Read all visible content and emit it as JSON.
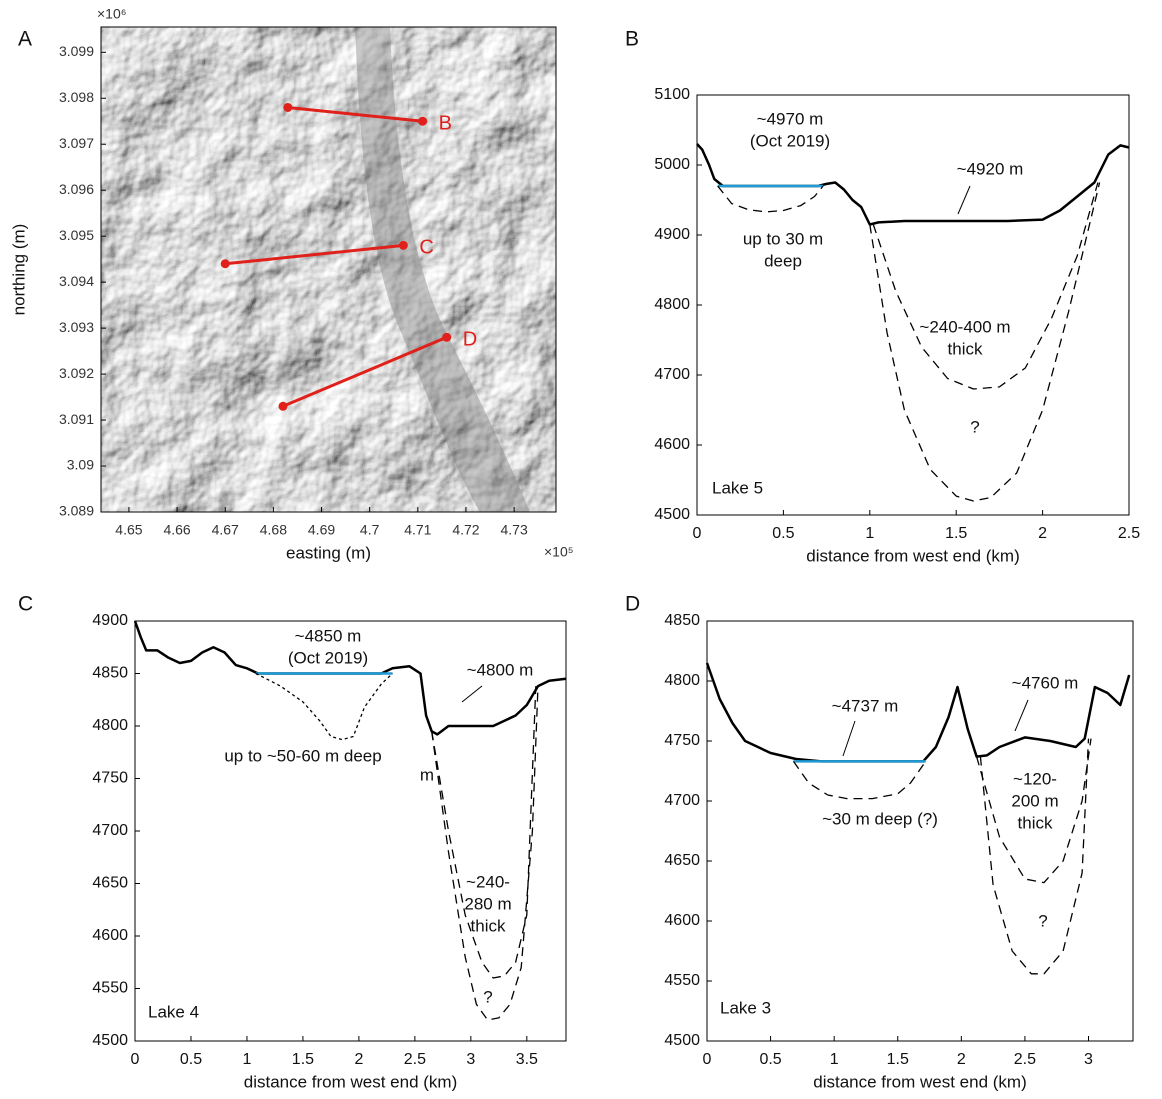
{
  "chart_data": [
    {
      "type": "map",
      "label": "A",
      "xlabel": "easting (m)",
      "ylabel": "northing (m)",
      "x_multiplier": "×10⁵",
      "y_multiplier": "×10⁶",
      "xlim": [
        4.6442,
        4.7387
      ],
      "ylim": [
        3.089,
        3.09955
      ],
      "xticks": [
        4.65,
        4.66,
        4.67,
        4.68,
        4.69,
        4.7,
        4.71,
        4.72,
        4.73
      ],
      "yticks": [
        3.089,
        3.09,
        3.091,
        3.092,
        3.093,
        3.094,
        3.095,
        3.096,
        3.097,
        3.098,
        3.099
      ],
      "series": [
        {
          "name": "B",
          "color": "#e0201b",
          "x": [
            4.683,
            4.711
          ],
          "y": [
            3.0978,
            3.0975
          ]
        },
        {
          "name": "C",
          "color": "#e0201b",
          "x": [
            4.67,
            4.707
          ],
          "y": [
            3.0944,
            3.0948
          ]
        },
        {
          "name": "D",
          "color": "#e0201b",
          "x": [
            4.682,
            4.716
          ],
          "y": [
            3.0913,
            3.0928
          ]
        }
      ]
    },
    {
      "type": "line",
      "label": "B",
      "xlabel": "distance from west end (km)",
      "xlim": [
        0,
        2.5
      ],
      "ylim": [
        4500,
        5100
      ],
      "xticks": [
        0,
        0.5,
        1,
        1.5,
        2,
        2.5
      ],
      "yticks": [
        4500,
        4600,
        4700,
        4800,
        4900,
        5000,
        5100
      ],
      "series": [
        {
          "color": "#000000",
          "style": "solid",
          "x": [
            0,
            0.03,
            0.07,
            0.1,
            0.15,
            0.3,
            0.5,
            0.7,
            0.75,
            0.8,
            0.85,
            0.9,
            0.95,
            1.0,
            1.05,
            1.2,
            1.5,
            1.8,
            2.0,
            2.1,
            2.2,
            2.3,
            2.38,
            2.45,
            2.5
          ],
          "y": [
            5030,
            5022,
            5000,
            4980,
            4970,
            4970,
            4970,
            4970,
            4973,
            4975,
            4965,
            4950,
            4940,
            4915,
            4918,
            4920,
            4920,
            4920,
            4922,
            4935,
            4955,
            4975,
            5015,
            5028,
            5025
          ]
        },
        {
          "color": "#1f9bd7",
          "style": "solid",
          "x": [
            0.12,
            0.73
          ],
          "y": [
            4970,
            4970
          ]
        },
        {
          "color": "#000000",
          "style": "dashed",
          "x": [
            0.12,
            0.2,
            0.3,
            0.4,
            0.5,
            0.6,
            0.68,
            0.73
          ],
          "y": [
            4970,
            4945,
            4936,
            4933,
            4935,
            4942,
            4955,
            4970
          ]
        },
        {
          "color": "#000000",
          "style": "dashed",
          "x": [
            1.02,
            1.15,
            1.3,
            1.45,
            1.6,
            1.75,
            1.9,
            2.05,
            2.2,
            2.32
          ],
          "y": [
            4915,
            4820,
            4740,
            4695,
            4680,
            4683,
            4710,
            4780,
            4870,
            4975
          ]
        },
        {
          "color": "#000000",
          "style": "dashed",
          "x": [
            1.0,
            1.1,
            1.2,
            1.35,
            1.5,
            1.6,
            1.7,
            1.85,
            2.0,
            2.15,
            2.33
          ],
          "y": [
            4915,
            4760,
            4650,
            4565,
            4527,
            4520,
            4525,
            4560,
            4650,
            4790,
            4975
          ]
        }
      ],
      "annotations": [
        {
          "lines": [
            "~4970 m",
            "(Oct 2019)"
          ]
        },
        {
          "lines": [
            "~4920 m"
          ]
        },
        {
          "lines": [
            "up to 30 m",
            "deep"
          ]
        },
        {
          "lines": [
            "~240-400 m",
            "thick"
          ]
        },
        {
          "lines": [
            "?"
          ]
        },
        {
          "lines": [
            "Lake 5"
          ]
        }
      ]
    },
    {
      "type": "line",
      "label": "C",
      "xlabel": "distance from west end (km)",
      "xlim": [
        0,
        3.85
      ],
      "ylim": [
        4500,
        4900
      ],
      "xticks": [
        0,
        0.5,
        1,
        1.5,
        2,
        2.5,
        3,
        3.5
      ],
      "yticks": [
        4500,
        4550,
        4600,
        4650,
        4700,
        4750,
        4800,
        4850,
        4900
      ],
      "series": [
        {
          "color": "#000000",
          "style": "solid",
          "x": [
            0,
            0.05,
            0.1,
            0.2,
            0.3,
            0.4,
            0.5,
            0.6,
            0.7,
            0.8,
            0.9,
            1.0,
            1.1,
            1.3,
            1.6,
            1.9,
            2.2,
            2.3,
            2.45,
            2.55,
            2.6,
            2.65,
            2.7,
            2.8,
            3.0,
            3.2,
            3.4,
            3.5,
            3.6,
            3.7,
            3.85
          ],
          "y": [
            4900,
            4885,
            4872,
            4872,
            4865,
            4860,
            4862,
            4870,
            4875,
            4870,
            4858,
            4855,
            4850,
            4850,
            4850,
            4850,
            4850,
            4855,
            4857,
            4850,
            4810,
            4795,
            4792,
            4800,
            4800,
            4800,
            4810,
            4820,
            4838,
            4843,
            4845
          ]
        },
        {
          "color": "#1f9bd7",
          "style": "solid",
          "x": [
            1.08,
            2.3
          ],
          "y": [
            4850,
            4850
          ]
        },
        {
          "color": "#000000",
          "style": "dotted",
          "x": [
            1.08,
            1.3,
            1.5,
            1.65,
            1.75,
            1.85,
            1.95,
            2.05,
            2.2,
            2.3
          ],
          "y": [
            4850,
            4838,
            4823,
            4805,
            4790,
            4787,
            4790,
            4818,
            4840,
            4850
          ]
        },
        {
          "color": "#000000",
          "style": "dashed",
          "x": [
            2.65,
            2.8,
            2.95,
            3.1,
            3.2,
            3.3,
            3.4,
            3.5,
            3.58
          ],
          "y": [
            4795,
            4700,
            4620,
            4575,
            4560,
            4562,
            4575,
            4620,
            4838
          ]
        },
        {
          "color": "#000000",
          "style": "dashed",
          "x": [
            2.65,
            2.8,
            2.95,
            3.05,
            3.15,
            3.25,
            3.35,
            3.45,
            3.55,
            3.6
          ],
          "y": [
            4795,
            4680,
            4580,
            4535,
            4520,
            4522,
            4535,
            4570,
            4700,
            4838
          ]
        }
      ],
      "annotations": [
        {
          "lines": [
            "~4850 m",
            "(Oct 2019)"
          ]
        },
        {
          "lines": [
            "~4800 m"
          ]
        },
        {
          "lines": [
            "up to ~50-60 m deep"
          ]
        },
        {
          "lines": [
            "m"
          ]
        },
        {
          "lines": [
            "~240-",
            "280 m",
            "thick"
          ]
        },
        {
          "lines": [
            "?"
          ]
        },
        {
          "lines": [
            "Lake 4"
          ]
        }
      ]
    },
    {
      "type": "line",
      "label": "D",
      "xlabel": "distance from west end (km)",
      "xlim": [
        0,
        3.35
      ],
      "ylim": [
        4500,
        4850
      ],
      "xticks": [
        0,
        0.5,
        1,
        1.5,
        2,
        2.5,
        3
      ],
      "yticks": [
        4500,
        4550,
        4600,
        4650,
        4700,
        4750,
        4800,
        4850
      ],
      "series": [
        {
          "color": "#000000",
          "style": "solid",
          "x": [
            0,
            0.1,
            0.2,
            0.3,
            0.5,
            0.7,
            0.9,
            1.2,
            1.5,
            1.7,
            1.8,
            1.9,
            1.97,
            2.05,
            2.12,
            2.2,
            2.3,
            2.5,
            2.7,
            2.9,
            2.97,
            3.05,
            3.15,
            3.25,
            3.32
          ],
          "y": [
            4815,
            4785,
            4765,
            4750,
            4740,
            4735,
            4733,
            4733,
            4733,
            4733,
            4745,
            4770,
            4795,
            4760,
            4737,
            4738,
            4745,
            4753,
            4750,
            4745,
            4752,
            4795,
            4790,
            4780,
            4805
          ]
        },
        {
          "color": "#1f9bd7",
          "style": "solid",
          "x": [
            0.68,
            1.72
          ],
          "y": [
            4733,
            4733
          ]
        },
        {
          "color": "#000000",
          "style": "dashed",
          "x": [
            0.68,
            0.8,
            0.95,
            1.1,
            1.3,
            1.5,
            1.6,
            1.72
          ],
          "y": [
            4733,
            4715,
            4705,
            4702,
            4702,
            4706,
            4715,
            4733
          ]
        },
        {
          "color": "#000000",
          "style": "dashed",
          "x": [
            2.12,
            2.3,
            2.5,
            2.65,
            2.8,
            2.95,
            3.02
          ],
          "y": [
            4737,
            4670,
            4635,
            4632,
            4650,
            4700,
            4752
          ]
        },
        {
          "color": "#000000",
          "style": "dashed",
          "x": [
            2.15,
            2.25,
            2.4,
            2.55,
            2.65,
            2.8,
            2.95,
            3.0
          ],
          "y": [
            4737,
            4630,
            4575,
            4556,
            4556,
            4575,
            4640,
            4752
          ]
        }
      ],
      "annotations": [
        {
          "lines": [
            "~4737 m"
          ]
        },
        {
          "lines": [
            "~4760 m"
          ]
        },
        {
          "lines": [
            "~30 m deep (?)"
          ]
        },
        {
          "lines": [
            "~120-",
            "200 m",
            "thick"
          ]
        },
        {
          "lines": [
            "?"
          ]
        },
        {
          "lines": [
            "Lake 3"
          ]
        }
      ]
    }
  ]
}
